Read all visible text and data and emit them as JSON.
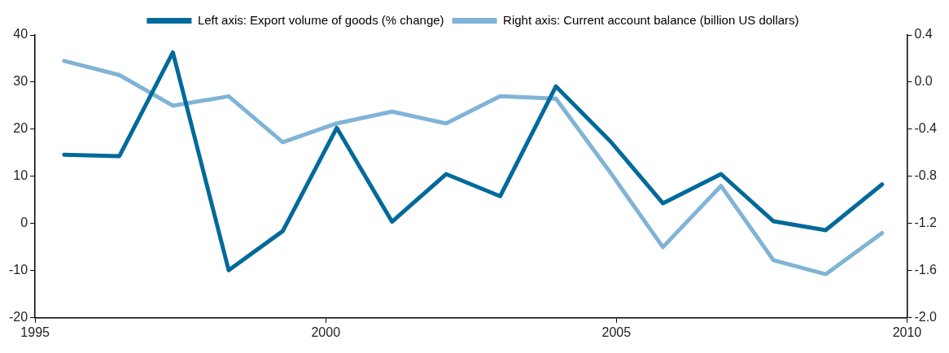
{
  "chart_data": {
    "type": "line",
    "x": [
      1995.5,
      1996.45,
      1997.37,
      1998.33,
      1999.26,
      2000.19,
      2001.14,
      2002.07,
      2003.0,
      2003.96,
      2004.9,
      2005.8,
      2006.8,
      2007.7,
      2008.6,
      2009.57
    ],
    "series": [
      {
        "name": "Left axis: Export volume of goods (% change)",
        "color": "#006a9a",
        "values": [
          14.6,
          14.3,
          36.3,
          -9.9,
          -1.6,
          20.3,
          0.4,
          10.5,
          5.8,
          29.1,
          17.4,
          4.3,
          10.5,
          0.5,
          -1.4,
          8.3
        ]
      },
      {
        "name": "Right axis: Current account balance (billion US dollars)",
        "color": "#80b4d6",
        "axis": "y2",
        "values": [
          0.18,
          0.06,
          -0.2,
          -0.12,
          -0.51,
          -0.35,
          -0.25,
          -0.35,
          -0.12,
          -0.14,
          -0.77,
          -1.4,
          -0.88,
          -1.51,
          -1.63,
          -1.28
        ]
      }
    ],
    "xlim": [
      1995,
      2010
    ],
    "xticks": [
      1995,
      2000,
      2005,
      2010
    ],
    "ylim": [
      -20,
      40
    ],
    "yticks": [
      -20,
      -10,
      0,
      10,
      20,
      30,
      40
    ],
    "y2lim": [
      -2.0,
      0.4
    ],
    "y2ticks": [
      {
        "value": -2,
        "label": "-2.0"
      },
      -1.6,
      -1.2,
      -0.8,
      -0.4,
      {
        "value": 0,
        "label": "0.0"
      },
      0.4
    ],
    "grid": false,
    "legend": "top",
    "marker": "none",
    "line_style": "solid"
  }
}
